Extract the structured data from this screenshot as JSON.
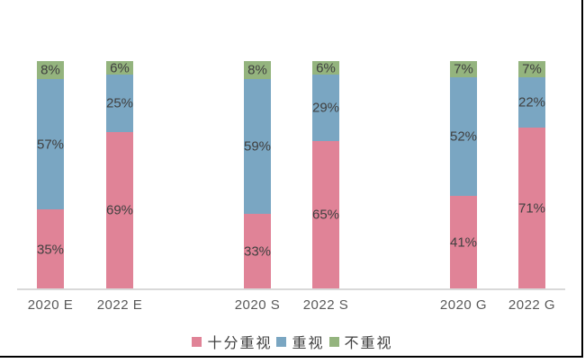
{
  "chart_data": {
    "type": "bar",
    "stacked": true,
    "orientation": "vertical",
    "value_unit": "%",
    "title": "",
    "xlabel": "",
    "ylabel": "",
    "ylim": [
      0,
      100
    ],
    "grid": false,
    "legend_position": "bottom",
    "categories": [
      "2020 E",
      "2022 E",
      "2020 S",
      "2022 S",
      "2020 G",
      "2022 G"
    ],
    "series": [
      {
        "name": "十分重视",
        "key": "very-important",
        "color": "#E08397",
        "values": [
          35,
          69,
          33,
          65,
          41,
          71
        ]
      },
      {
        "name": "重视",
        "key": "important",
        "color": "#7AA6C2",
        "values": [
          57,
          25,
          59,
          29,
          52,
          22
        ]
      },
      {
        "name": "不重视",
        "key": "not-important",
        "color": "#94B47E",
        "values": [
          8,
          6,
          8,
          6,
          7,
          7
        ]
      }
    ],
    "value_labels": [
      "35%",
      "69%",
      "33%",
      "65%",
      "41%",
      "71%",
      "57%",
      "25%",
      "59%",
      "29%",
      "52%",
      "22%",
      "8%",
      "6%",
      "8%",
      "6%",
      "7%",
      "7%"
    ]
  },
  "styles": {
    "value_label_color": "#404040",
    "category_label_color": "#595959",
    "legend_text_color": "#404040",
    "axis_line_color": "#D9D9D9",
    "page_border_color": "#000000",
    "background_color": "#FFFFFF"
  }
}
